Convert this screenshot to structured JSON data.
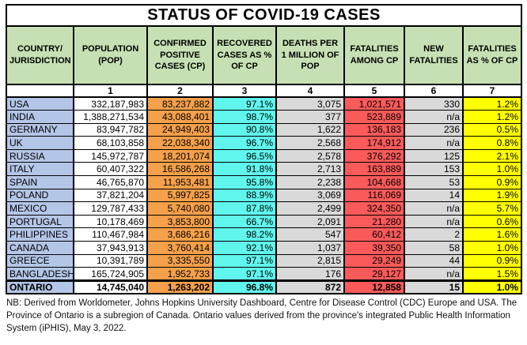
{
  "title": "STATUS OF COVID-19 CASES",
  "columns": [
    {
      "key": "country",
      "label": "COUNTRY/ JURISDICTION",
      "number": ""
    },
    {
      "key": "population",
      "label": "POPULATION (POP)",
      "number": "1"
    },
    {
      "key": "confirmed_positive",
      "label": "CONFIRMED POSITIVE CASES (CP)",
      "number": "2"
    },
    {
      "key": "recovered_pct",
      "label": "RECOVERED CASES AS % OF CP",
      "number": "3"
    },
    {
      "key": "deaths_per_million",
      "label": "DEATHS PER 1 MILLION OF POP",
      "number": "4"
    },
    {
      "key": "fatalities_among_cp",
      "label": "FATALITIES AMONG CP",
      "number": "5"
    },
    {
      "key": "new_fatalities",
      "label": "NEW FATALITIES",
      "number": "6"
    },
    {
      "key": "fatalities_pct_of_cp",
      "label": "FATALITIES AS % OF CP",
      "number": "7"
    }
  ],
  "rows": [
    [
      "USA",
      "332,187,983",
      "83,237,882",
      "97.1%",
      "3,075",
      "1,021,571",
      "330",
      "1.2%"
    ],
    [
      "INDIA",
      "1,388,271,534",
      "43,088,401",
      "98.7%",
      "377",
      "523,889",
      "n/a",
      "1.2%"
    ],
    [
      "GERMANY",
      "83,947,782",
      "24,949,403",
      "90.8%",
      "1,622",
      "136,183",
      "236",
      "0.5%"
    ],
    [
      "UK",
      "68,103,858",
      "22,038,340",
      "96.7%",
      "2,568",
      "174,912",
      "n/a",
      "0.8%"
    ],
    [
      "RUSSIA",
      "145,972,787",
      "18,201,074",
      "96.5%",
      "2,578",
      "376,292",
      "125",
      "2.1%"
    ],
    [
      "ITALY",
      "60,407,322",
      "16,586,268",
      "91.8%",
      "2,713",
      "163,889",
      "153",
      "1.0%"
    ],
    [
      "SPAIN",
      "46,765,870",
      "11,953,481",
      "95.8%",
      "2,238",
      "104,668",
      "53",
      "0.9%"
    ],
    [
      "POLAND",
      "37,821,204",
      "5,997,825",
      "88.9%",
      "3,069",
      "116,069",
      "14",
      "1.9%"
    ],
    [
      "MEXICO",
      "129,787,433",
      "5,740,080",
      "87.8%",
      "2,499",
      "324,350",
      "n/a",
      "5.7%"
    ],
    [
      "PORTUGAL",
      "10,178,469",
      "3,853,800",
      "66.7%",
      "2,091",
      "21,280",
      "n/a",
      "0.6%"
    ],
    [
      "PHILIPPINES",
      "110,467,984",
      "3,686,216",
      "98.2%",
      "547",
      "60,412",
      "2",
      "1.6%"
    ],
    [
      "CANADA",
      "37,943,913",
      "3,760,414",
      "92.1%",
      "1,037",
      "39,350",
      "58",
      "1.0%"
    ],
    [
      "GREECE",
      "10,391,789",
      "3,335,550",
      "97.1%",
      "2,815",
      "29,249",
      "44",
      "0.9%"
    ],
    [
      "BANGLADESH",
      "165,724,905",
      "1,952,733",
      "97.1%",
      "176",
      "29,127",
      "n/a",
      "1.5%"
    ]
  ],
  "summary_row": [
    "ONTARIO",
    "14,745,040",
    "1,263,202",
    "96.8%",
    "872",
    "12,858",
    "15",
    "1.0%"
  ],
  "footnote": "NB: Derived from Worldometer, Johns Hopkins University Dashboard, Centre for Disease Control (CDC) Europe and USA. The Province of Ontario is a subregion of Canada. Ontario values derived from the province's integrated Public Health Information System (iPHIS), May 3, 2022.",
  "colors": {
    "header_bg": "#c6e0b4",
    "country_col_bg": "#b4c6e7",
    "population_col_bg": "#ffffff",
    "confirmed_col_bg": "#f5a04a",
    "recovered_col_bg": "#60f6ee",
    "deaths_col_bg": "#d9d9d9",
    "fatalities_col_bg": "#fa5a5a",
    "new_fatalities_col_bg": "#d9d9d9",
    "fatality_pct_col_bg": "#ffff00",
    "border": "#000000"
  }
}
